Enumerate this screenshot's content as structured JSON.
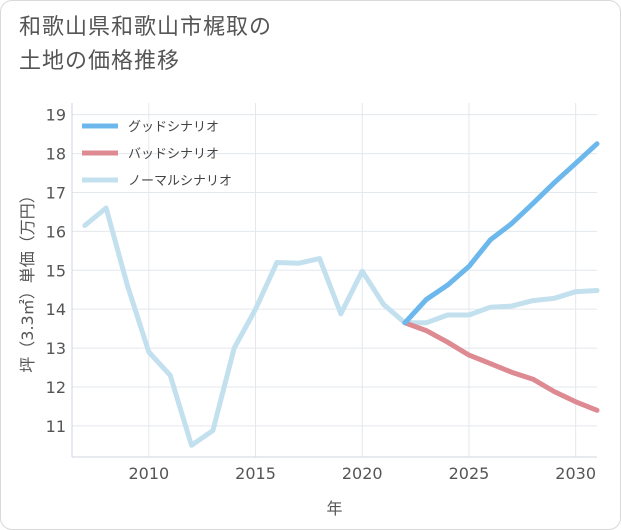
{
  "header": {
    "title_line1": "和歌山県和歌山市梶取の",
    "title_line2": "土地の価格推移"
  },
  "chart_data": {
    "type": "line",
    "xlabel": "年",
    "ylabel": "坪（3.3㎡）単価（万円）",
    "xlim": [
      2006.4,
      2031
    ],
    "ylim": [
      10.2,
      19.3
    ],
    "x_ticks": [
      2010,
      2015,
      2020,
      2025,
      2030
    ],
    "y_ticks": [
      11,
      12,
      13,
      14,
      15,
      16,
      17,
      18,
      19
    ],
    "grid": true,
    "legend_position": "top-left",
    "series": [
      {
        "name": "グッドシナリオ",
        "color": "#6cb8ec",
        "x": [
          2022,
          2023,
          2024,
          2025,
          2026,
          2027,
          2028,
          2029,
          2030,
          2031
        ],
        "y": [
          13.65,
          14.25,
          14.62,
          15.1,
          15.78,
          16.2,
          16.72,
          17.25,
          17.75,
          18.25
        ]
      },
      {
        "name": "バッドシナリオ",
        "color": "#de8a92",
        "x": [
          2022,
          2023,
          2024,
          2025,
          2026,
          2027,
          2028,
          2029,
          2030,
          2031
        ],
        "y": [
          13.65,
          13.45,
          13.15,
          12.82,
          12.6,
          12.38,
          12.2,
          11.88,
          11.62,
          11.4
        ]
      },
      {
        "name": "ノーマルシナリオ",
        "color": "#c3e0ee",
        "x": [
          2007,
          2008,
          2009,
          2010,
          2011,
          2012,
          2013,
          2014,
          2015,
          2016,
          2017,
          2018,
          2019,
          2020,
          2021,
          2022,
          2023,
          2024,
          2025,
          2026,
          2027,
          2028,
          2029,
          2030,
          2031
        ],
        "y": [
          16.15,
          16.6,
          14.6,
          12.9,
          12.3,
          10.5,
          10.88,
          13.0,
          14.0,
          15.2,
          15.18,
          15.3,
          13.88,
          14.98,
          14.12,
          13.65,
          13.65,
          13.85,
          13.85,
          14.05,
          14.08,
          14.22,
          14.28,
          14.45,
          14.48
        ]
      }
    ]
  }
}
